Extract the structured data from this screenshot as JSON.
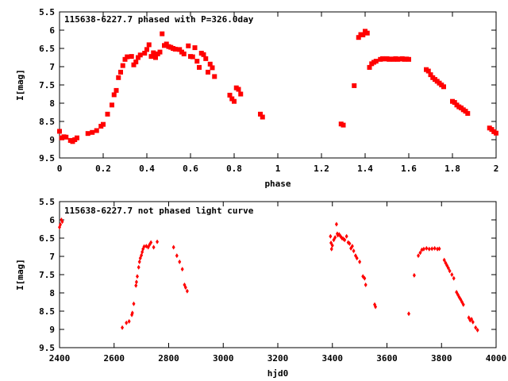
{
  "colors": {
    "points": "#ff0000",
    "frame": "#000000"
  },
  "chart_data": [
    {
      "type": "scatter",
      "title": "115638-6227.7 phased with P=326.0day",
      "xlabel": "phase",
      "ylabel": "I[mag]",
      "xlim": [
        0,
        2
      ],
      "ylim": [
        9.5,
        5.5
      ],
      "y_inverted": true,
      "x_ticks": [
        "0",
        "0.2",
        "0.4",
        "0.6",
        "0.8",
        "1",
        "1.2",
        "1.4",
        "1.6",
        "1.8",
        "2"
      ],
      "y_ticks": [
        "5.5",
        "6",
        "6.5",
        "7",
        "7.5",
        "8",
        "8.5",
        "9",
        "9.5"
      ],
      "grid": false,
      "marker": "star",
      "series": [
        {
          "points": [
            [
              0.0,
              8.77
            ],
            [
              0.01,
              8.95
            ],
            [
              0.02,
              8.92
            ],
            [
              0.03,
              8.93
            ],
            [
              0.05,
              9.02
            ],
            [
              0.06,
              9.05
            ],
            [
              0.07,
              9.0
            ],
            [
              0.08,
              8.95
            ],
            [
              0.13,
              8.83
            ],
            [
              0.15,
              8.8
            ],
            [
              0.17,
              8.75
            ],
            [
              0.19,
              8.63
            ],
            [
              0.2,
              8.58
            ],
            [
              0.22,
              8.3
            ],
            [
              0.24,
              8.05
            ],
            [
              0.25,
              7.77
            ],
            [
              0.26,
              7.65
            ],
            [
              0.27,
              7.3
            ],
            [
              0.28,
              7.15
            ],
            [
              0.29,
              6.97
            ],
            [
              0.3,
              6.8
            ],
            [
              0.31,
              6.73
            ],
            [
              0.33,
              6.72
            ],
            [
              0.34,
              6.95
            ],
            [
              0.35,
              6.87
            ],
            [
              0.36,
              6.75
            ],
            [
              0.37,
              6.68
            ],
            [
              0.39,
              6.63
            ],
            [
              0.4,
              6.53
            ],
            [
              0.41,
              6.4
            ],
            [
              0.42,
              6.72
            ],
            [
              0.43,
              6.62
            ],
            [
              0.44,
              6.75
            ],
            [
              0.45,
              6.65
            ],
            [
              0.46,
              6.6
            ],
            [
              0.47,
              6.1
            ],
            [
              0.48,
              6.42
            ],
            [
              0.49,
              6.38
            ],
            [
              0.5,
              6.45
            ],
            [
              0.51,
              6.47
            ],
            [
              0.52,
              6.5
            ],
            [
              0.53,
              6.52
            ],
            [
              0.55,
              6.53
            ],
            [
              0.56,
              6.6
            ],
            [
              0.57,
              6.65
            ],
            [
              0.59,
              6.43
            ],
            [
              0.6,
              6.72
            ],
            [
              0.61,
              6.73
            ],
            [
              0.62,
              6.48
            ],
            [
              0.63,
              6.85
            ],
            [
              0.64,
              7.02
            ],
            [
              0.65,
              6.63
            ],
            [
              0.66,
              6.67
            ],
            [
              0.67,
              6.78
            ],
            [
              0.68,
              7.15
            ],
            [
              0.69,
              6.93
            ],
            [
              0.7,
              7.03
            ],
            [
              0.71,
              7.27
            ],
            [
              0.78,
              7.78
            ],
            [
              0.79,
              7.88
            ],
            [
              0.8,
              7.95
            ],
            [
              0.81,
              7.58
            ],
            [
              0.82,
              7.62
            ],
            [
              0.83,
              7.75
            ],
            [
              0.92,
              8.3
            ],
            [
              0.93,
              8.38
            ],
            [
              1.29,
              8.57
            ],
            [
              1.3,
              8.6
            ],
            [
              1.35,
              7.52
            ],
            [
              1.37,
              6.2
            ],
            [
              1.38,
              6.12
            ],
            [
              1.39,
              6.13
            ],
            [
              1.4,
              6.03
            ],
            [
              1.41,
              6.08
            ],
            [
              1.42,
              7.02
            ],
            [
              1.43,
              6.92
            ],
            [
              1.44,
              6.88
            ],
            [
              1.45,
              6.85
            ],
            [
              1.47,
              6.8
            ],
            [
              1.48,
              6.78
            ],
            [
              1.49,
              6.79
            ],
            [
              1.5,
              6.78
            ],
            [
              1.51,
              6.8
            ],
            [
              1.52,
              6.79
            ],
            [
              1.53,
              6.8
            ],
            [
              1.54,
              6.78
            ],
            [
              1.55,
              6.8
            ],
            [
              1.56,
              6.79
            ],
            [
              1.57,
              6.78
            ],
            [
              1.58,
              6.8
            ],
            [
              1.59,
              6.79
            ],
            [
              1.6,
              6.8
            ],
            [
              1.68,
              7.08
            ],
            [
              1.69,
              7.12
            ],
            [
              1.7,
              7.22
            ],
            [
              1.71,
              7.3
            ],
            [
              1.72,
              7.35
            ],
            [
              1.73,
              7.4
            ],
            [
              1.74,
              7.45
            ],
            [
              1.75,
              7.5
            ],
            [
              1.76,
              7.55
            ],
            [
              1.8,
              7.95
            ],
            [
              1.81,
              7.98
            ],
            [
              1.82,
              8.05
            ],
            [
              1.83,
              8.1
            ],
            [
              1.84,
              8.13
            ],
            [
              1.85,
              8.18
            ],
            [
              1.86,
              8.22
            ],
            [
              1.87,
              8.28
            ],
            [
              1.97,
              8.68
            ],
            [
              1.98,
              8.72
            ],
            [
              1.99,
              8.78
            ],
            [
              2.0,
              8.82
            ]
          ]
        }
      ]
    },
    {
      "type": "scatter",
      "title": "115638-6227.7 not phased light curve",
      "xlabel": "hjd0",
      "ylabel": "I[mag]",
      "xlim": [
        2400,
        4000
      ],
      "ylim": [
        9.5,
        5.5
      ],
      "y_inverted": true,
      "x_ticks": [
        "2400",
        "2600",
        "2800",
        "3000",
        "3200",
        "3400",
        "3600",
        "3800",
        "4000"
      ],
      "y_ticks": [
        "5.5",
        "6",
        "6.5",
        "7",
        "7.5",
        "8",
        "8.5",
        "9",
        "9.5"
      ],
      "grid": false,
      "marker": "diamond",
      "series": [
        {
          "points": [
            [
              2400,
              6.2
            ],
            [
              2403,
              6.13
            ],
            [
              2407,
              6.0
            ],
            [
              2410,
              6.05
            ],
            [
              2630,
              8.95
            ],
            [
              2645,
              8.82
            ],
            [
              2655,
              8.78
            ],
            [
              2665,
              8.6
            ],
            [
              2667,
              8.55
            ],
            [
              2672,
              8.3
            ],
            [
              2680,
              7.8
            ],
            [
              2682,
              7.7
            ],
            [
              2685,
              7.55
            ],
            [
              2690,
              7.3
            ],
            [
              2693,
              7.15
            ],
            [
              2696,
              7.05
            ],
            [
              2700,
              6.97
            ],
            [
              2703,
              6.88
            ],
            [
              2706,
              6.8
            ],
            [
              2710,
              6.73
            ],
            [
              2718,
              6.72
            ],
            [
              2725,
              6.75
            ],
            [
              2730,
              6.68
            ],
            [
              2735,
              6.62
            ],
            [
              2745,
              6.75
            ],
            [
              2758,
              6.6
            ],
            [
              2818,
              6.75
            ],
            [
              2830,
              6.98
            ],
            [
              2840,
              7.15
            ],
            [
              2850,
              7.35
            ],
            [
              2858,
              7.78
            ],
            [
              2862,
              7.85
            ],
            [
              2868,
              7.95
            ],
            [
              3393,
              6.45
            ],
            [
              3395,
              6.63
            ],
            [
              3397,
              6.8
            ],
            [
              3400,
              6.7
            ],
            [
              3405,
              6.55
            ],
            [
              3410,
              6.48
            ],
            [
              3415,
              6.12
            ],
            [
              3418,
              6.38
            ],
            [
              3420,
              6.42
            ],
            [
              3425,
              6.4
            ],
            [
              3430,
              6.45
            ],
            [
              3435,
              6.5
            ],
            [
              3440,
              6.52
            ],
            [
              3445,
              6.55
            ],
            [
              3452,
              6.45
            ],
            [
              3458,
              6.62
            ],
            [
              3463,
              6.65
            ],
            [
              3468,
              6.78
            ],
            [
              3473,
              6.72
            ],
            [
              3478,
              6.85
            ],
            [
              3485,
              6.98
            ],
            [
              3490,
              7.05
            ],
            [
              3500,
              7.15
            ],
            [
              3512,
              7.55
            ],
            [
              3518,
              7.6
            ],
            [
              3522,
              7.78
            ],
            [
              3555,
              8.32
            ],
            [
              3558,
              8.38
            ],
            [
              3680,
              8.57
            ],
            [
              3700,
              7.52
            ],
            [
              3715,
              6.98
            ],
            [
              3722,
              6.9
            ],
            [
              3728,
              6.82
            ],
            [
              3735,
              6.8
            ],
            [
              3745,
              6.78
            ],
            [
              3755,
              6.8
            ],
            [
              3765,
              6.79
            ],
            [
              3775,
              6.78
            ],
            [
              3785,
              6.8
            ],
            [
              3792,
              6.79
            ],
            [
              3810,
              7.1
            ],
            [
              3815,
              7.18
            ],
            [
              3820,
              7.25
            ],
            [
              3825,
              7.32
            ],
            [
              3830,
              7.4
            ],
            [
              3838,
              7.5
            ],
            [
              3845,
              7.6
            ],
            [
              3855,
              7.98
            ],
            [
              3860,
              8.05
            ],
            [
              3865,
              8.12
            ],
            [
              3870,
              8.18
            ],
            [
              3875,
              8.25
            ],
            [
              3880,
              8.32
            ],
            [
              3900,
              8.68
            ],
            [
              3905,
              8.75
            ],
            [
              3910,
              8.72
            ],
            [
              3915,
              8.8
            ],
            [
              3925,
              8.95
            ],
            [
              3932,
              9.02
            ]
          ]
        }
      ]
    }
  ]
}
